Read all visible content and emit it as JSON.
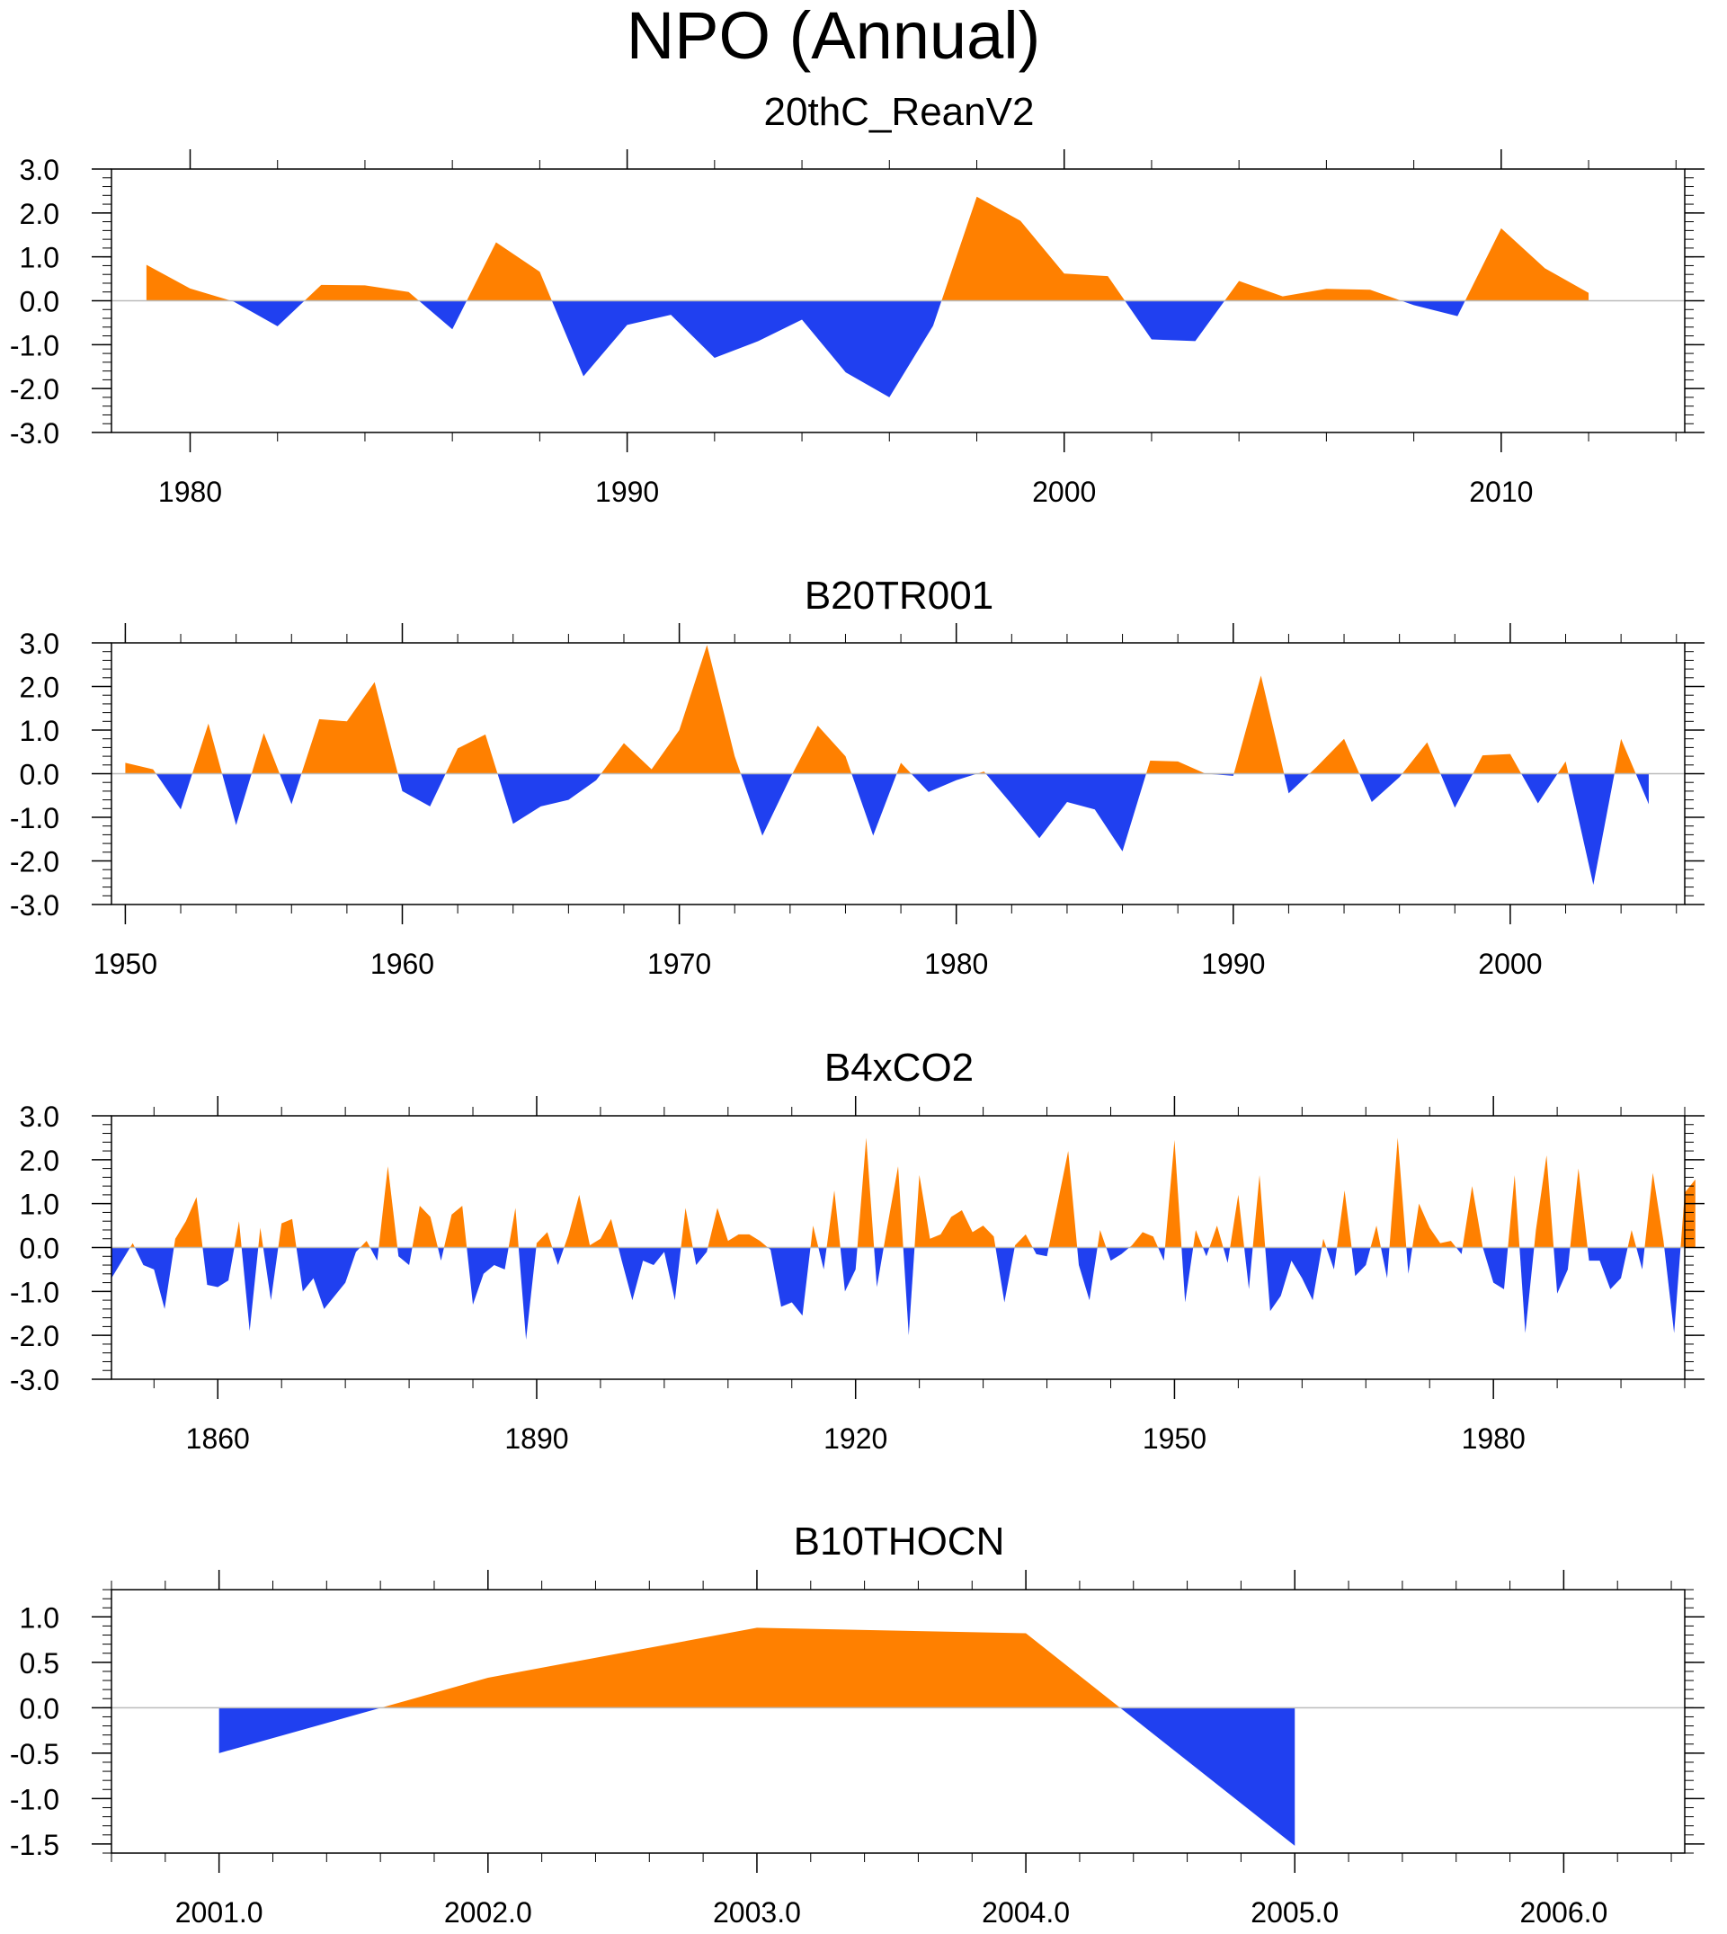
{
  "title": "NPO (Annual)",
  "colors": {
    "positive": "#ff8000",
    "negative": "#2040f0",
    "axis": "#000000",
    "zero_line": "#bbbbbb"
  },
  "chart_data": [
    {
      "type": "area",
      "title": "20thC_ReanV2",
      "xlim": [
        1978.2,
        2014.2
      ],
      "ylim": [
        -3.0,
        3.0
      ],
      "ytick_values": [
        3.0,
        2.0,
        1.0,
        0.0,
        -1.0,
        -2.0,
        -3.0
      ],
      "ytick_labels": [
        "3.0",
        "2.0",
        "1.0",
        "0.0",
        "-1.0",
        "-2.0",
        "-3.0"
      ],
      "xtick_values": [
        1980,
        1990,
        2000,
        2010
      ],
      "xtick_labels": [
        "1980",
        "1990",
        "2000",
        "2010"
      ],
      "x": [
        1979,
        1980,
        1981,
        1982,
        1983,
        1984,
        1985,
        1986,
        1987,
        1988,
        1989,
        1990,
        1991,
        1992,
        1993,
        1994,
        1995,
        1996,
        1997,
        1998,
        1999,
        2000,
        2001,
        2002,
        2003,
        2004,
        2005,
        2006,
        2007,
        2008,
        2009,
        2010,
        2011,
        2012
      ],
      "y": [
        0.82,
        0.28,
        -0.02,
        -0.58,
        0.36,
        0.35,
        0.2,
        -0.65,
        1.33,
        0.66,
        -1.72,
        -0.55,
        -0.32,
        -1.3,
        -0.92,
        -0.43,
        -1.63,
        -2.2,
        -0.57,
        2.37,
        1.82,
        0.62,
        0.56,
        -0.88,
        -0.92,
        0.45,
        0.1,
        0.27,
        0.25,
        -0.1,
        -0.35,
        1.65,
        0.74,
        0.18
      ]
    },
    {
      "type": "area",
      "title": "B20TR001",
      "xlim": [
        1949.5,
        2006.3
      ],
      "ylim": [
        -3.0,
        3.0
      ],
      "ytick_values": [
        3.0,
        2.0,
        1.0,
        0.0,
        -1.0,
        -2.0,
        -3.0
      ],
      "ytick_labels": [
        "3.0",
        "2.0",
        "1.0",
        "0.0",
        "-1.0",
        "-2.0",
        "-3.0"
      ],
      "xtick_values": [
        1950,
        1960,
        1970,
        1980,
        1990,
        2000
      ],
      "xtick_labels": [
        "1950",
        "1960",
        "1970",
        "1980",
        "1990",
        "2000"
      ],
      "x": [
        1950,
        1951,
        1952,
        1953,
        1954,
        1955,
        1956,
        1957,
        1958,
        1959,
        1960,
        1961,
        1962,
        1963,
        1964,
        1965,
        1966,
        1967,
        1968,
        1969,
        1970,
        1971,
        1972,
        1973,
        1974,
        1975,
        1976,
        1977,
        1978,
        1979,
        1980,
        1981,
        1982,
        1983,
        1984,
        1985,
        1986,
        1987,
        1988,
        1989,
        1990,
        1991,
        1992,
        1993,
        1994,
        1995,
        1996,
        1997,
        1998,
        1999,
        2000,
        2001,
        2002,
        2003,
        2004,
        2005
      ],
      "y": [
        0.25,
        0.1,
        -0.82,
        1.15,
        -1.18,
        0.93,
        -0.7,
        1.25,
        1.2,
        2.1,
        -0.4,
        -0.75,
        0.58,
        0.9,
        -1.15,
        -0.75,
        -0.6,
        -0.15,
        0.7,
        0.1,
        1.0,
        2.95,
        0.4,
        -1.42,
        -0.1,
        1.1,
        0.4,
        -1.42,
        0.25,
        -0.42,
        -0.15,
        0.05,
        -0.7,
        -1.48,
        -0.65,
        -0.82,
        -1.78,
        0.3,
        0.28,
        0.0,
        -0.05,
        2.25,
        -0.45,
        0.15,
        0.8,
        -0.65,
        -0.08,
        0.72,
        -0.78,
        0.42,
        0.45,
        -0.68,
        0.28,
        -2.55,
        0.8,
        -0.7
      ]
    },
    {
      "type": "area",
      "title": "B4xCO2",
      "xlim": [
        1850,
        1998
      ],
      "ylim": [
        -3.0,
        3.0
      ],
      "ytick_values": [
        3.0,
        2.0,
        1.0,
        0.0,
        -1.0,
        -2.0,
        -3.0
      ],
      "ytick_labels": [
        "3.0",
        "2.0",
        "1.0",
        "0.0",
        "-1.0",
        "-2.0",
        "-3.0"
      ],
      "xtick_values": [
        1860,
        1890,
        1920,
        1950,
        1980
      ],
      "xtick_labels": [
        "1860",
        "1890",
        "1920",
        "1950",
        "1980"
      ],
      "x_start": 1850,
      "y": [
        -0.7,
        -0.3,
        0.1,
        -0.4,
        -0.5,
        -1.4,
        0.2,
        0.6,
        1.15,
        -0.85,
        -0.9,
        -0.75,
        0.6,
        -1.9,
        0.45,
        -1.2,
        0.55,
        0.65,
        -1.0,
        -0.7,
        -1.4,
        -1.1,
        -0.8,
        -0.1,
        0.15,
        -0.3,
        1.85,
        -0.2,
        -0.4,
        0.95,
        0.7,
        -0.3,
        0.75,
        0.95,
        -1.3,
        -0.6,
        -0.4,
        -0.5,
        0.9,
        -2.1,
        0.1,
        0.35,
        -0.4,
        0.3,
        1.2,
        0.05,
        0.2,
        0.65,
        -0.3,
        -1.2,
        -0.3,
        -0.4,
        -0.1,
        -1.2,
        0.9,
        -0.4,
        -0.1,
        0.9,
        0.15,
        0.3,
        0.3,
        0.15,
        -0.05,
        -1.35,
        -1.25,
        -1.55,
        0.5,
        -0.5,
        1.3,
        -1.0,
        -0.5,
        2.5,
        -0.9,
        0.5,
        1.85,
        -2.0,
        1.65,
        0.2,
        0.3,
        0.7,
        0.85,
        0.35,
        0.5,
        0.25,
        -1.25,
        0.05,
        0.3,
        -0.15,
        -0.2,
        1.0,
        2.2,
        -0.4,
        -1.2,
        0.4,
        -0.3,
        -0.15,
        0.05,
        0.35,
        0.25,
        -0.3,
        2.45,
        -1.25,
        0.4,
        -0.2,
        0.5,
        -0.35,
        1.2,
        -0.95,
        1.65,
        -1.45,
        -1.1,
        -0.3,
        -0.7,
        -1.2,
        0.2,
        -0.5,
        1.3,
        -0.65,
        -0.4,
        0.5,
        -0.7,
        2.5,
        -0.6,
        1.0,
        0.45,
        0.1,
        0.15,
        -0.15,
        1.4,
        0.0,
        -0.8,
        -0.95,
        1.65,
        -1.95,
        0.4,
        2.1,
        -1.05,
        -0.5,
        1.8,
        -0.3,
        -0.3,
        -0.95,
        -0.7,
        0.4,
        -0.5,
        1.7,
        0.15,
        -1.95,
        1.25,
        1.55
      ]
    },
    {
      "type": "area",
      "title": "B10THOCN",
      "xlim": [
        2000.6,
        2006.45
      ],
      "ylim": [
        -1.6,
        1.3
      ],
      "ytick_values": [
        1.0,
        0.5,
        0.0,
        -0.5,
        -1.0,
        -1.5
      ],
      "ytick_labels": [
        "1.0",
        "0.5",
        "0.0",
        "-0.5",
        "-1.0",
        "-1.5"
      ],
      "xtick_values": [
        2001,
        2002,
        2003,
        2004,
        2005,
        2006
      ],
      "xtick_labels": [
        "2001.0",
        "2002.0",
        "2003.0",
        "2004.0",
        "2005.0",
        "2006.0"
      ],
      "x": [
        2001,
        2002,
        2003,
        2004,
        2005
      ],
      "y": [
        -0.5,
        0.33,
        0.88,
        0.82,
        -1.52
      ]
    }
  ]
}
